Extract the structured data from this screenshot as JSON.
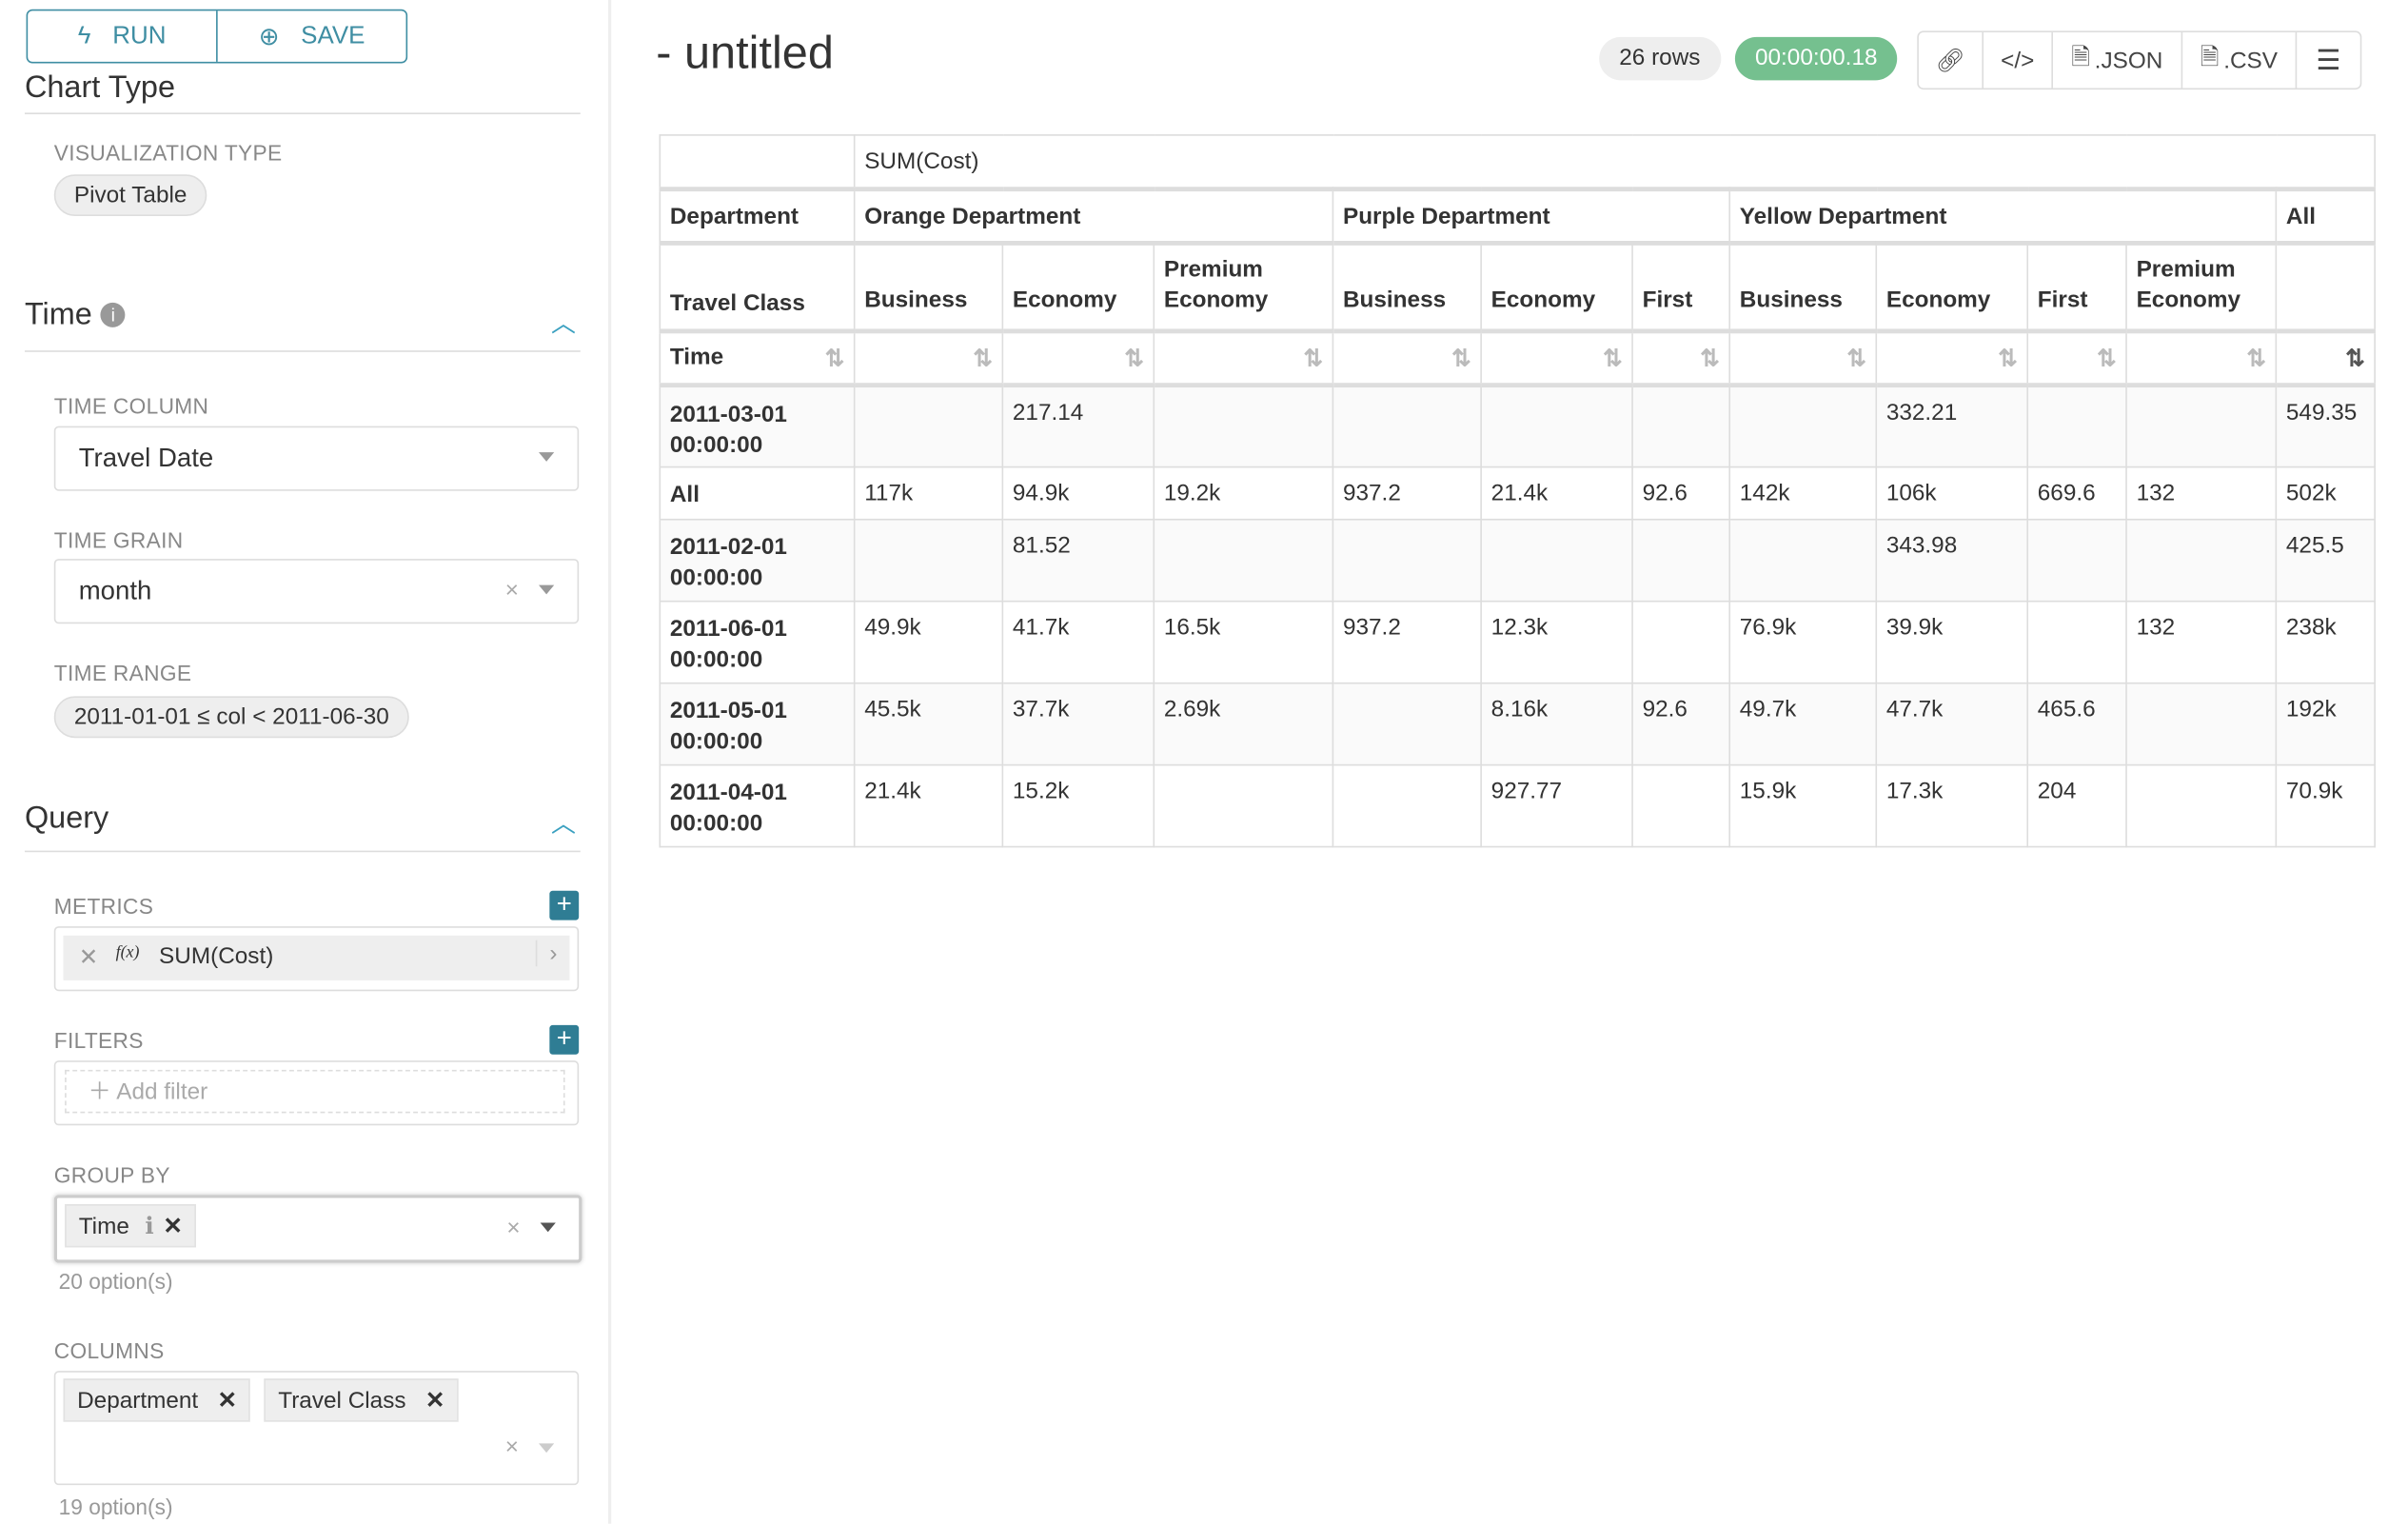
{
  "sidebar": {
    "run_label": "RUN",
    "save_label": "SAVE",
    "chart_type_section": "Chart Type",
    "visualization_type_label": "VISUALIZATION TYPE",
    "visualization_type": "Pivot Table",
    "time_section": "Time",
    "time_column_label": "TIME COLUMN",
    "time_column": "Travel Date",
    "time_grain_label": "TIME GRAIN",
    "time_grain": "month",
    "time_range_label": "TIME RANGE",
    "time_range": "2011-01-01 ≤ col < 2011-06-30",
    "query_section": "Query",
    "metrics_label": "METRICS",
    "metric": "SUM(Cost)",
    "metric_fx": "f(x)",
    "filters_label": "FILTERS",
    "add_filter": "Add filter",
    "group_by_label": "GROUP BY",
    "group_by_tags": [
      "Time"
    ],
    "group_by_hint": "20 option(s)",
    "columns_label": "COLUMNS",
    "columns_tags": [
      "Department",
      "Travel Class"
    ],
    "columns_hint": "19 option(s)"
  },
  "header": {
    "title": "- untitled",
    "rows": "26 rows",
    "duration": "00:00:00.18",
    "json_label": ".JSON",
    "csv_label": ".CSV"
  },
  "colors": {
    "accent": "#3f8ea3",
    "success": "#75c08f"
  },
  "table": {
    "metric": "SUM(Cost)",
    "department_label": "Department",
    "departments": [
      {
        "name": "Orange Department",
        "span": 3
      },
      {
        "name": "Purple Department",
        "span": 3
      },
      {
        "name": "Yellow Department",
        "span": 4
      },
      {
        "name": "All",
        "span": 1
      }
    ],
    "travel_class_label": "Travel Class",
    "classes": [
      "Business",
      "Economy",
      "Premium Economy",
      "Business",
      "Economy",
      "First",
      "Business",
      "Economy",
      "First",
      "Premium Economy",
      ""
    ],
    "row_label": "Time",
    "rows": [
      {
        "time": "2011-03-01 00:00:00",
        "values": [
          "",
          "217.14",
          "",
          "",
          "",
          "",
          "",
          "332.21",
          "",
          "",
          "549.35"
        ]
      },
      {
        "time": "All",
        "values": [
          "117k",
          "94.9k",
          "19.2k",
          "937.2",
          "21.4k",
          "92.6",
          "142k",
          "106k",
          "669.6",
          "132",
          "502k"
        ]
      },
      {
        "time": "2011-02-01 00:00:00",
        "values": [
          "",
          "81.52",
          "",
          "",
          "",
          "",
          "",
          "343.98",
          "",
          "",
          "425.5"
        ]
      },
      {
        "time": "2011-06-01 00:00:00",
        "values": [
          "49.9k",
          "41.7k",
          "16.5k",
          "937.2",
          "12.3k",
          "",
          "76.9k",
          "39.9k",
          "",
          "132",
          "238k"
        ]
      },
      {
        "time": "2011-05-01 00:00:00",
        "values": [
          "45.5k",
          "37.7k",
          "2.69k",
          "",
          "8.16k",
          "92.6",
          "49.7k",
          "47.7k",
          "465.6",
          "",
          "192k"
        ]
      },
      {
        "time": "2011-04-01 00:00:00",
        "values": [
          "21.4k",
          "15.2k",
          "",
          "",
          "927.77",
          "",
          "15.9k",
          "17.3k",
          "204",
          "",
          "70.9k"
        ]
      }
    ]
  }
}
